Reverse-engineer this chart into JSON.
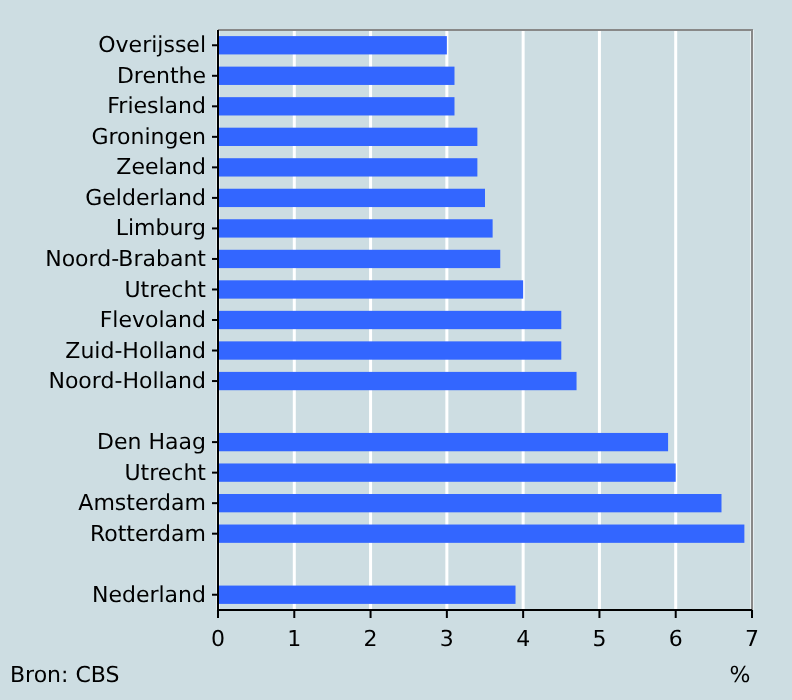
{
  "chart_data": {
    "type": "bar",
    "orientation": "horizontal",
    "categories": [
      "Overijssel",
      "Drenthe",
      "Friesland",
      "Groningen",
      "Zeeland",
      "Gelderland",
      "Limburg",
      "Noord-Brabant",
      "Utrecht",
      "Flevoland",
      "Zuid-Holland",
      "Noord-Holland",
      null,
      "Den Haag",
      "Utrecht",
      "Amsterdam",
      "Rotterdam",
      null,
      "Nederland"
    ],
    "values": [
      3.0,
      3.1,
      3.1,
      3.4,
      3.4,
      3.5,
      3.6,
      3.7,
      4.0,
      4.5,
      4.5,
      4.7,
      null,
      5.9,
      6.0,
      6.6,
      6.9,
      null,
      3.9
    ],
    "color": "#3366ff",
    "xlim": [
      0,
      7
    ],
    "xticks": [
      0,
      1,
      2,
      3,
      4,
      5,
      6,
      7
    ],
    "grid": "x",
    "xlabel": "%",
    "annotations": [
      "Bron: CBS"
    ]
  }
}
